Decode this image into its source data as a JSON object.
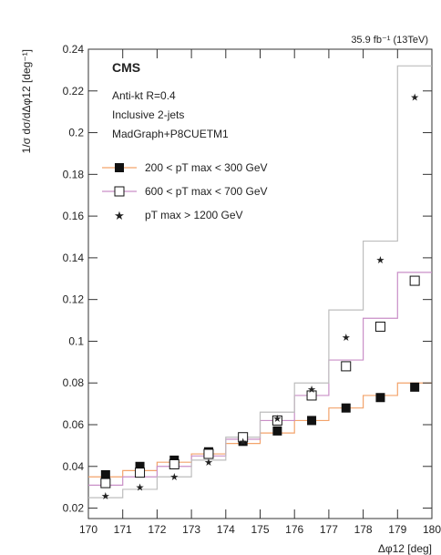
{
  "chart_data": {
    "type": "step",
    "experiment": "CMS",
    "lumi_text": "35.9 fb⁻¹ (13TeV)",
    "annotations": [
      "Anti-kt R=0.4",
      "Inclusive 2-jets",
      "MadGraph+P8CUETM1"
    ],
    "xlabel": "Δφ12 [deg]",
    "ylabel": "1/σ dσ/dΔφ12 [deg⁻¹]",
    "xlim": [
      170,
      180
    ],
    "ylim": [
      0.015,
      0.24
    ],
    "xticks": [
      170,
      171,
      172,
      173,
      174,
      175,
      176,
      177,
      178,
      179,
      180
    ],
    "yticks": [
      0.02,
      0.04,
      0.06,
      0.08,
      0.1,
      0.12,
      0.14,
      0.16,
      0.18,
      0.2,
      0.22,
      0.24
    ],
    "bin_edges": [
      170,
      171,
      172,
      173,
      174,
      175,
      176,
      177,
      178,
      179,
      180
    ],
    "x": [
      170.5,
      171.5,
      172.5,
      173.5,
      174.5,
      175.5,
      176.5,
      177.5,
      178.5,
      179.5
    ],
    "legend_position": "upper-left",
    "series": [
      {
        "name": "200 < pT max < 300 GeV",
        "marker": "filled-square",
        "line_color": "#f3a36b",
        "values": [
          0.036,
          0.04,
          0.043,
          0.047,
          0.052,
          0.057,
          0.062,
          0.068,
          0.073,
          0.078
        ],
        "mc": [
          0.035,
          0.038,
          0.042,
          0.046,
          0.051,
          0.056,
          0.062,
          0.068,
          0.074,
          0.08
        ]
      },
      {
        "name": "600 < pT max < 700 GeV",
        "marker": "open-square",
        "line_color": "#c98fc7",
        "values": [
          0.032,
          0.037,
          0.041,
          0.046,
          0.054,
          0.062,
          0.074,
          0.088,
          0.107,
          0.129
        ],
        "mc": [
          0.031,
          0.035,
          0.04,
          0.045,
          0.053,
          0.062,
          0.074,
          0.091,
          0.111,
          0.133
        ]
      },
      {
        "name": "pT max > 1200 GeV",
        "marker": "star",
        "line_color": "#bdbdbd",
        "values": [
          0.026,
          0.03,
          0.035,
          0.042,
          0.052,
          0.063,
          0.077,
          0.102,
          0.139,
          0.217
        ],
        "mc": [
          0.025,
          0.029,
          0.035,
          0.043,
          0.054,
          0.066,
          0.08,
          0.115,
          0.148,
          0.232
        ]
      }
    ]
  }
}
